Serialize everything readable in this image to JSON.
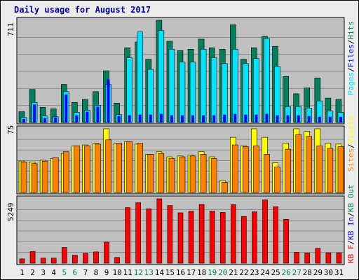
{
  "title": "Daily usage for August 2017",
  "colors": {
    "panel_bg": "#c0c0c0",
    "hits": "#00805c",
    "files": "#00e4ff",
    "pages": "#0000ff",
    "visits": "#ffff00",
    "sites": "#ff8000",
    "kbytes": "#ff0000",
    "weekday_label": "#000000",
    "weekend_label": "#00805c"
  },
  "chart_data": [
    {
      "type": "bar",
      "panel": "hits-files-pages",
      "max_label": "711",
      "ylim": [
        0,
        711
      ],
      "legend": [
        "Pages",
        "Files",
        "Hits"
      ],
      "categories": [
        "1",
        "2",
        "3",
        "4",
        "5",
        "6",
        "7",
        "8",
        "9",
        "10",
        "11",
        "12",
        "13",
        "14",
        "15",
        "16",
        "17",
        "18",
        "19",
        "20",
        "21",
        "22",
        "23",
        "24",
        "25",
        "26",
        "27",
        "28",
        "29",
        "30",
        "31"
      ],
      "weekend_days": [
        "5",
        "6",
        "12",
        "13",
        "19",
        "20",
        "26",
        "27"
      ],
      "series": [
        {
          "name": "Hits",
          "values": [
            75,
            230,
            105,
            95,
            265,
            140,
            160,
            215,
            360,
            135,
            520,
            560,
            440,
            711,
            565,
            500,
            510,
            580,
            520,
            510,
            680,
            440,
            520,
            600,
            530,
            320,
            200,
            240,
            310,
            170,
            160
          ]
        },
        {
          "name": "Files",
          "values": [
            35,
            140,
            45,
            40,
            215,
            70,
            85,
            120,
            265,
            55,
            450,
            630,
            370,
            640,
            510,
            420,
            420,
            510,
            450,
            410,
            510,
            410,
            445,
            585,
            390,
            110,
            110,
            100,
            150,
            80,
            70
          ]
        },
        {
          "name": "Pages",
          "values": [
            25,
            125,
            30,
            35,
            195,
            50,
            75,
            110,
            300,
            45,
            50,
            55,
            55,
            60,
            50,
            50,
            50,
            50,
            50,
            55,
            60,
            55,
            55,
            60,
            50,
            50,
            50,
            45,
            40,
            40,
            40
          ]
        }
      ]
    },
    {
      "type": "bar",
      "panel": "visits-sites",
      "max_label": "75",
      "ylim": [
        0,
        75
      ],
      "legend": [
        "Sites",
        "Visits"
      ],
      "categories": [
        "1",
        "2",
        "3",
        "4",
        "5",
        "6",
        "7",
        "8",
        "9",
        "10",
        "11",
        "12",
        "13",
        "14",
        "15",
        "16",
        "17",
        "18",
        "19",
        "20",
        "21",
        "22",
        "23",
        "24",
        "25",
        "26",
        "27",
        "28",
        "29",
        "30",
        "31"
      ],
      "series": [
        {
          "name": "Visits",
          "values": [
            37,
            36,
            38,
            40,
            46,
            55,
            56,
            58,
            75,
            58,
            60,
            57,
            45,
            48,
            42,
            43,
            44,
            48,
            42,
            14,
            65,
            55,
            75,
            65,
            35,
            58,
            75,
            72,
            75,
            58,
            57
          ]
        },
        {
          "name": "Sites",
          "values": [
            36,
            34,
            37,
            41,
            48,
            55,
            55,
            57,
            62,
            58,
            60,
            58,
            45,
            46,
            40,
            42,
            43,
            45,
            40,
            12,
            56,
            54,
            55,
            45,
            30,
            51,
            68,
            66,
            55,
            52,
            54
          ]
        }
      ]
    },
    {
      "type": "bar",
      "panel": "kbytes",
      "max_label": "5249",
      "ylim": [
        0,
        5249
      ],
      "legend": [
        "KB F",
        "KB In",
        "KB Out"
      ],
      "categories": [
        "1",
        "2",
        "3",
        "4",
        "5",
        "6",
        "7",
        "8",
        "9",
        "10",
        "11",
        "12",
        "13",
        "14",
        "15",
        "16",
        "17",
        "18",
        "19",
        "20",
        "21",
        "22",
        "23",
        "24",
        "25",
        "26",
        "27",
        "28",
        "29",
        "30",
        "31"
      ],
      "series": [
        {
          "name": "KBytes",
          "values": [
            350,
            950,
            420,
            420,
            1280,
            650,
            810,
            920,
            1720,
            470,
            4530,
            4930,
            4440,
            5249,
            4700,
            4110,
            4260,
            4790,
            4260,
            4140,
            4770,
            3800,
            4190,
            5160,
            4600,
            3580,
            890,
            830,
            1210,
            850,
            850
          ]
        }
      ]
    }
  ]
}
